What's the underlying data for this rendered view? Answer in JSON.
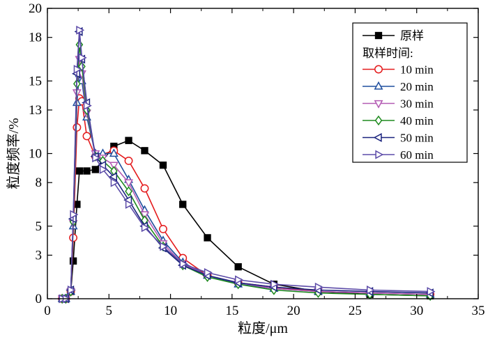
{
  "chart_data": {
    "type": "line",
    "title": "",
    "xlabel": "粒度/μm",
    "ylabel": "粒度频率/%",
    "xlim": [
      0,
      35
    ],
    "ylim": [
      0,
      20
    ],
    "xticks": [
      0,
      5,
      10,
      15,
      20,
      25,
      30,
      35
    ],
    "yticks": [
      0,
      3,
      5,
      8,
      10,
      13,
      15,
      18,
      20
    ],
    "ytick_labels": [
      "0",
      "3",
      "5",
      "8",
      "10",
      "13",
      "15",
      "18",
      "20"
    ],
    "legend_placement": "top-right",
    "legend_heading": "取样时间:",
    "series": [
      {
        "name": "原样",
        "color": "#000000",
        "marker": "square-filled",
        "x": [
          1.2,
          1.5,
          1.9,
          2.1,
          2.4,
          2.6,
          3.2,
          3.9,
          5.4,
          6.6,
          7.9,
          9.4,
          11.0,
          13.0,
          15.5,
          18.4,
          22.0,
          26.2,
          31.1
        ],
        "y": [
          0.0,
          0.0,
          0.5,
          2.6,
          6.5,
          8.8,
          8.8,
          8.9,
          10.5,
          10.9,
          10.2,
          9.2,
          6.5,
          4.2,
          2.2,
          1.0,
          0.5,
          0.3,
          0.2
        ]
      },
      {
        "name": "10 min",
        "color": "#e41a1c",
        "marker": "circle-open",
        "x": [
          1.2,
          1.5,
          1.9,
          2.1,
          2.4,
          2.6,
          2.8,
          3.2,
          3.9,
          5.4,
          6.6,
          7.9,
          9.4,
          11.0,
          13.0,
          15.5,
          18.4,
          22.0,
          26.2,
          31.1
        ],
        "y": [
          0.0,
          0.0,
          0.5,
          4.2,
          11.8,
          13.8,
          13.6,
          11.2,
          9.8,
          10.2,
          9.5,
          7.6,
          4.8,
          2.8,
          1.6,
          1.1,
          0.8,
          0.5,
          0.4,
          0.3
        ]
      },
      {
        "name": "20 min",
        "color": "#1f4e9e",
        "marker": "triangle-up-open",
        "x": [
          1.2,
          1.5,
          1.9,
          2.1,
          2.4,
          2.6,
          2.8,
          3.2,
          3.9,
          4.5,
          5.4,
          6.6,
          7.9,
          9.4,
          11.0,
          13.0,
          15.5,
          18.4,
          22.0,
          26.2,
          31.1
        ],
        "y": [
          0.0,
          0.0,
          0.5,
          5.0,
          13.5,
          15.5,
          15.0,
          12.5,
          10.0,
          10.0,
          10.0,
          8.2,
          6.1,
          4.0,
          2.5,
          1.6,
          1.0,
          0.7,
          0.5,
          0.4,
          0.3
        ]
      },
      {
        "name": "30 min",
        "color": "#b35ab3",
        "marker": "triangle-down-open",
        "x": [
          1.2,
          1.5,
          1.9,
          2.1,
          2.4,
          2.6,
          2.8,
          3.2,
          3.9,
          4.5,
          5.4,
          6.6,
          7.9,
          9.4,
          11.0,
          13.0,
          15.5,
          18.4,
          22.0,
          26.2,
          31.1
        ],
        "y": [
          0.0,
          0.0,
          0.5,
          5.2,
          14.2,
          16.5,
          15.5,
          12.8,
          10.0,
          9.7,
          9.2,
          8.0,
          5.8,
          3.8,
          2.4,
          1.6,
          1.1,
          0.7,
          0.5,
          0.4,
          0.3
        ]
      },
      {
        "name": "40 min",
        "color": "#1e8a1e",
        "marker": "diamond-open",
        "x": [
          1.2,
          1.5,
          1.9,
          2.1,
          2.4,
          2.6,
          2.8,
          3.2,
          3.9,
          4.5,
          5.4,
          6.6,
          7.9,
          9.4,
          11.0,
          13.0,
          15.5,
          18.4,
          22.0,
          26.2,
          31.1
        ],
        "y": [
          0.0,
          0.0,
          0.5,
          5.3,
          14.8,
          17.5,
          16.0,
          13.0,
          9.8,
          9.5,
          8.8,
          7.4,
          5.4,
          3.6,
          2.3,
          1.5,
          1.0,
          0.6,
          0.4,
          0.3,
          0.2
        ]
      },
      {
        "name": "50 min",
        "color": "#1a237e",
        "marker": "triangle-left-open",
        "x": [
          1.2,
          1.5,
          1.9,
          2.1,
          2.4,
          2.6,
          2.8,
          3.2,
          3.9,
          4.5,
          5.4,
          6.6,
          7.9,
          9.4,
          11.0,
          13.0,
          15.5,
          18.4,
          22.0,
          26.2,
          31.1
        ],
        "y": [
          0.0,
          0.0,
          0.6,
          5.5,
          15.5,
          18.4,
          16.5,
          13.5,
          9.8,
          9.2,
          8.4,
          6.8,
          5.0,
          3.5,
          2.3,
          1.6,
          1.1,
          0.8,
          0.6,
          0.5,
          0.4
        ]
      },
      {
        "name": "60 min",
        "color": "#5c4ba8",
        "marker": "triangle-right-open",
        "x": [
          1.2,
          1.5,
          1.9,
          2.1,
          2.4,
          2.6,
          2.8,
          3.2,
          3.9,
          4.5,
          5.4,
          6.6,
          7.9,
          9.4,
          11.0,
          13.0,
          15.5,
          18.4,
          22.0,
          26.2,
          31.1
        ],
        "y": [
          0.0,
          0.0,
          0.6,
          5.8,
          15.8,
          18.5,
          16.6,
          13.3,
          9.7,
          8.9,
          8.0,
          6.5,
          4.9,
          3.6,
          2.4,
          1.8,
          1.3,
          1.0,
          0.8,
          0.6,
          0.5
        ]
      }
    ]
  }
}
